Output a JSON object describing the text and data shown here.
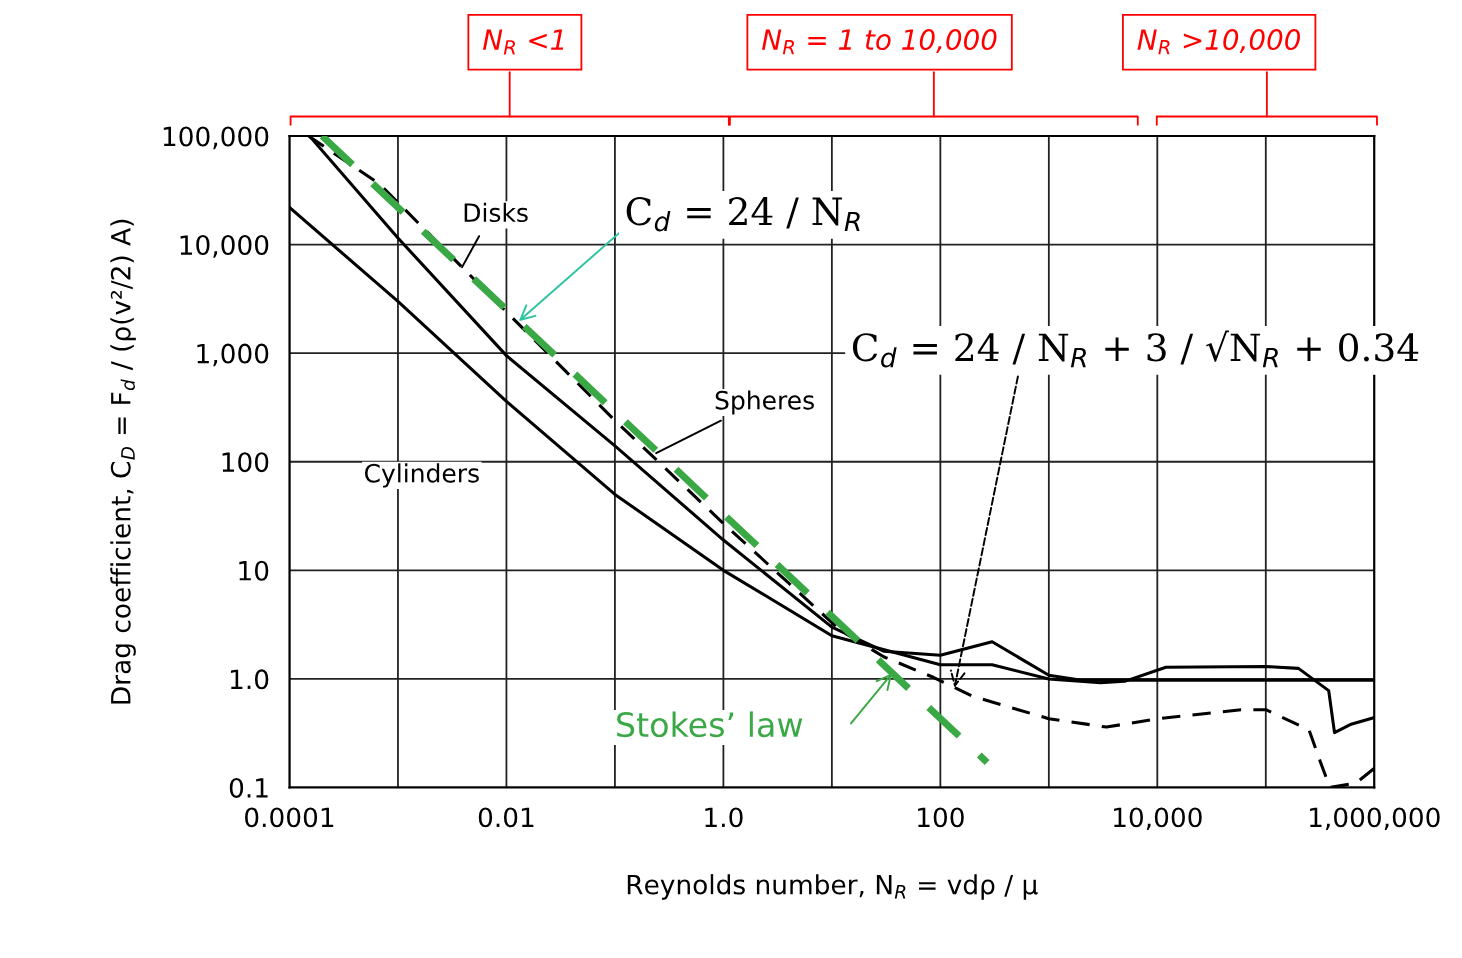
{
  "chart_data": {
    "type": "line",
    "xlabel": "Reynolds number, N$_{R}$ = vdρ / μ",
    "ylabel": "Drag coefficient, C$_{D}$ = F$_{d}$ / (ρ(v²/2) A)",
    "log": "xy",
    "grid": true,
    "marker": "none",
    "line_style": "solid",
    "xlim": [
      0.0001,
      1000000
    ],
    "ylim": [
      0.1,
      100000
    ],
    "xticks": [
      {
        "value": 0.0001,
        "label": "0.0001"
      },
      {
        "value": 0.001,
        "label": null
      },
      {
        "value": 0.01,
        "label": "0.01"
      },
      {
        "value": 0.1,
        "label": null
      },
      {
        "value": 1,
        "label": "1.0"
      },
      {
        "value": 10,
        "label": null
      },
      100,
      {
        "value": 1000,
        "label": null
      },
      {
        "value": 10000,
        "label": "10,000"
      },
      {
        "value": 100000,
        "label": null
      },
      {
        "value": 1000000,
        "label": "1,000,000"
      }
    ],
    "yticks": [
      {
        "value": 0.1,
        "label": "0.1"
      },
      {
        "value": 1,
        "label": "1.0"
      },
      10,
      100,
      {
        "value": 1000,
        "label": "1,000"
      },
      {
        "value": 10000,
        "label": "10,000"
      },
      {
        "value": 100000,
        "label": "100,000"
      }
    ],
    "series": [
      {
        "color": "#000000",
        "x": [
          0.0001,
          0.001,
          0.01,
          0.1,
          1,
          10,
          100,
          300,
          1000,
          3000,
          5000,
          12000,
          100000,
          200000,
          380000,
          430000,
          600000,
          1000000
        ],
        "values": [
          22000,
          3000,
          360,
          50,
          10,
          2.5,
          1.35,
          1.35,
          1.0,
          0.92,
          0.95,
          1.28,
          1.3,
          1.25,
          0.78,
          0.32,
          0.38,
          0.44
        ]
      },
      {
        "color": "#000000",
        "x": [
          0.00016,
          0.001,
          0.01,
          0.1,
          1,
          10,
          30,
          100,
          300,
          1000,
          2000,
          10000,
          100000,
          1000000
        ],
        "values": [
          95000,
          11500,
          950,
          140,
          19,
          3.0,
          1.8,
          1.65,
          2.2,
          1.08,
          0.97,
          0.97,
          0.97,
          0.97
        ]
      },
      {
        "color": "#000000",
        "line_style": "dashed",
        "x": [
          0.00015,
          0.00068,
          0.01,
          0.1,
          1,
          12,
          30,
          87,
          200,
          1000,
          3400,
          10000,
          59000,
          100000,
          250000,
          320000,
          390000,
          680000,
          1000000
        ],
        "values": [
          100000,
          36000,
          2400,
          240,
          27,
          2.8,
          1.6,
          1.03,
          0.69,
          0.43,
          0.36,
          0.43,
          0.52,
          0.52,
          0.34,
          0.17,
          0.1,
          0.11,
          0.15
        ]
      },
      {
        "color": "#3aa845",
        "line_style": "dashed",
        "x": [
          0.0002,
          270
        ],
        "values": [
          100000,
          0.17
        ]
      }
    ],
    "annotations": [
      {
        "text": "Disks",
        "x": 0.0039,
        "y": 6200
      },
      {
        "text": "Spheres",
        "x": 0.24,
        "y": 120
      },
      "Cylinders",
      {
        "text": "Stokes’ law",
        "x": 36,
        "y": 1.13
      },
      {
        "text": "C$_{d}$ = 24 / N$_{R}$",
        "x": 0.013,
        "y": 1970
      },
      {
        "text": "C$_{d}$ = 24 / N$_{R}$ + 3 / √N$_{R}$ + 0.34",
        "x": 135,
        "y": 0.83
      },
      "N$_{R}$ <1",
      "N$_{R}$ = 1 to 10,000",
      "N$_{R}$ >10,000"
    ]
  }
}
